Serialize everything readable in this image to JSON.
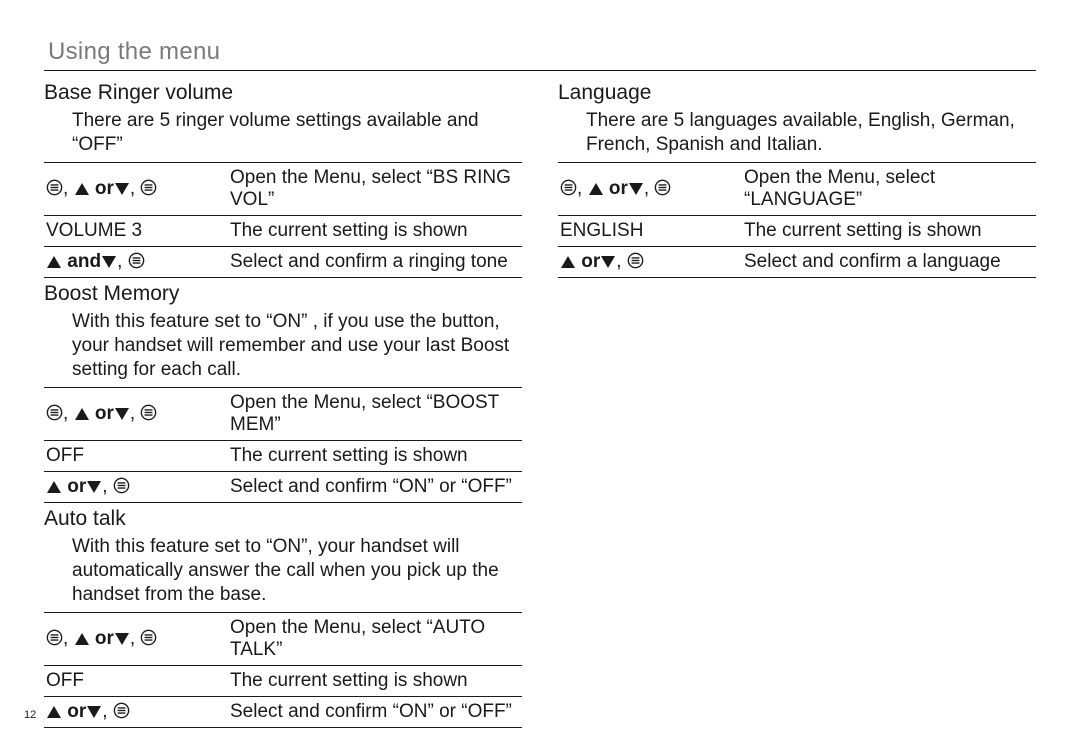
{
  "colors": {
    "text": "#1a1a1a",
    "muted": "#7a7a7a",
    "rule": "#1a1a1a",
    "background": "#ffffff"
  },
  "fonts": {
    "body_family": "Arial, Helvetica, sans-serif",
    "title_size_pt": 18,
    "section_title_size_pt": 16,
    "body_size_pt": 14
  },
  "page_title": "Using the menu",
  "page_number": "12",
  "symbols": {
    "menu_icon": "menu-circle-icon",
    "up_icon": "triangle-up-icon",
    "down_icon": "triangle-down-icon",
    "or": "or",
    "and": "and",
    "comma": ", "
  },
  "left": {
    "sections": [
      {
        "title": "Base Ringer volume",
        "body": "There are 5 ringer volume settings available and “OFF”",
        "rows": [
          {
            "keys": [
              "menu",
              "comma",
              "up",
              "space",
              "or_bold",
              "down",
              "comma",
              "menu"
            ],
            "desc": "Open the Menu, select “BS RING VOL”"
          },
          {
            "label": "VOLUME 3",
            "desc": "The current setting is shown"
          },
          {
            "keys": [
              "up",
              "space",
              "and_bold",
              "down",
              "comma",
              "menu"
            ],
            "desc": "Select and confirm a ringing tone"
          }
        ]
      },
      {
        "title": "Boost Memory",
        "body": "With this feature set to “ON” , if you use the button, your handset will remember and use your last Boost setting for each call.",
        "rows": [
          {
            "keys": [
              "menu",
              "comma",
              "up",
              "space",
              "or_bold",
              "down",
              "comma",
              "menu"
            ],
            "desc": "Open the Menu, select “BOOST MEM”"
          },
          {
            "label": "OFF",
            "desc": "The current setting is shown"
          },
          {
            "keys": [
              "up",
              "space",
              "or_bold",
              "down",
              "comma",
              "menu"
            ],
            "desc": "Select and confirm “ON” or “OFF”"
          }
        ]
      },
      {
        "title": "Auto talk",
        "body": "With this feature set to “ON”, your handset will automatically answer the call when you pick up the handset from the base.",
        "rows": [
          {
            "keys": [
              "menu",
              "comma",
              "up",
              "space",
              "or_bold",
              "down",
              "comma",
              "menu"
            ],
            "desc": "Open the Menu, select “AUTO TALK”"
          },
          {
            "label": "OFF",
            "desc": "The current setting is shown"
          },
          {
            "keys": [
              "up",
              "space",
              "or_bold",
              "down",
              "comma",
              "menu"
            ],
            "desc": "Select and confirm “ON” or “OFF”"
          }
        ]
      }
    ]
  },
  "right": {
    "sections": [
      {
        "title": "Language",
        "body": "There are 5 languages available, English, German, French, Spanish and Italian.",
        "rows": [
          {
            "keys": [
              "menu",
              "comma",
              "up",
              "space",
              "or_bold",
              "down",
              "comma",
              "menu"
            ],
            "desc": "Open the Menu, select “LANGUAGE”"
          },
          {
            "label": "ENGLISH",
            "desc": "The current setting is shown"
          },
          {
            "keys": [
              "up",
              "space",
              "or_bold",
              "down",
              "comma",
              "menu"
            ],
            "desc": "Select and confirm a language"
          }
        ]
      }
    ]
  }
}
